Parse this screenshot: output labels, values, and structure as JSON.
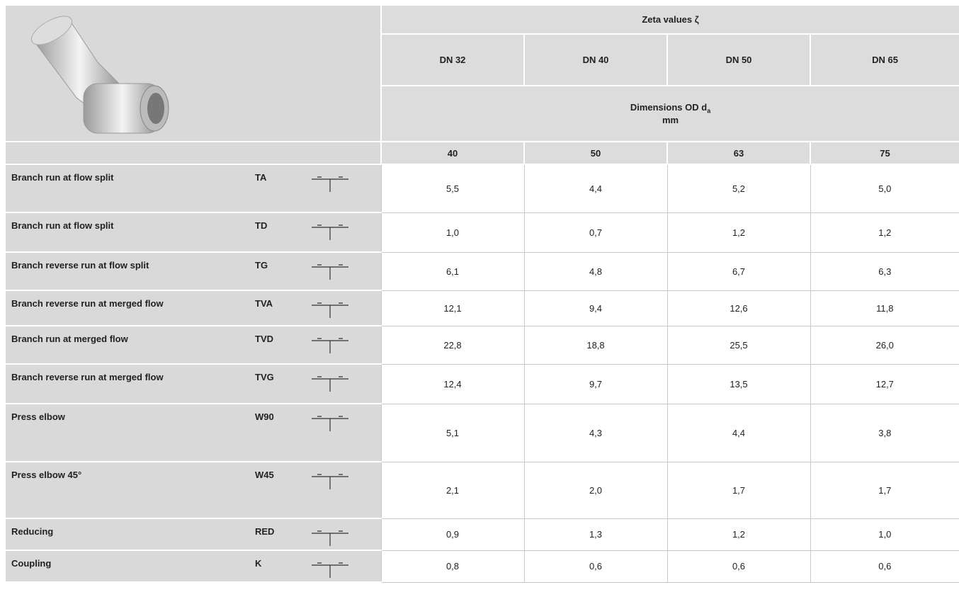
{
  "header": {
    "title": "Zeta values ζ",
    "sizes": [
      "DN 32",
      "DN 40",
      "DN 50",
      "DN 65"
    ],
    "dimensions_label": "Dimensions OD d",
    "dimensions_subscript": "a",
    "dimensions_unit": "mm",
    "dimensions": [
      40,
      50,
      63,
      75
    ]
  },
  "rows": [
    {
      "name": "Branch run at flow split",
      "code": "TA",
      "values": [
        "5,5",
        "4,4",
        "5,2",
        "5,0"
      ]
    },
    {
      "name": "Branch run at flow split",
      "code": "TD",
      "values": [
        "1,0",
        "0,7",
        "1,2",
        "1,2"
      ]
    },
    {
      "name": "Branch reverse run at flow split",
      "code": "TG",
      "values": [
        "6,1",
        "4,8",
        "6,7",
        "6,3"
      ]
    },
    {
      "name": "Branch reverse run at merged flow",
      "code": "TVA",
      "values": [
        "12,1",
        "9,4",
        "12,6",
        "11,8"
      ]
    },
    {
      "name": "Branch run at merged flow",
      "code": "TVD",
      "values": [
        "22,8",
        "18,8",
        "25,5",
        "26,0"
      ]
    },
    {
      "name": "Branch reverse run at merged flow",
      "code": "TVG",
      "values": [
        "12,4",
        "9,7",
        "13,5",
        "12,7"
      ]
    },
    {
      "name": "Press elbow",
      "code": "W90",
      "values": [
        "5,1",
        "4,3",
        "4,4",
        "3,8"
      ]
    },
    {
      "name": "Press elbow 45°",
      "code": "W45",
      "values": [
        "2,1",
        "2,0",
        "1,7",
        "1,7"
      ]
    },
    {
      "name": "Reducing",
      "code": "RED",
      "values": [
        "0,9",
        "1,3",
        "1,2",
        "1,0"
      ]
    },
    {
      "name": "Coupling",
      "code": "K",
      "values": [
        "0,8",
        "0,6",
        "0,6",
        "0,6"
      ]
    }
  ]
}
